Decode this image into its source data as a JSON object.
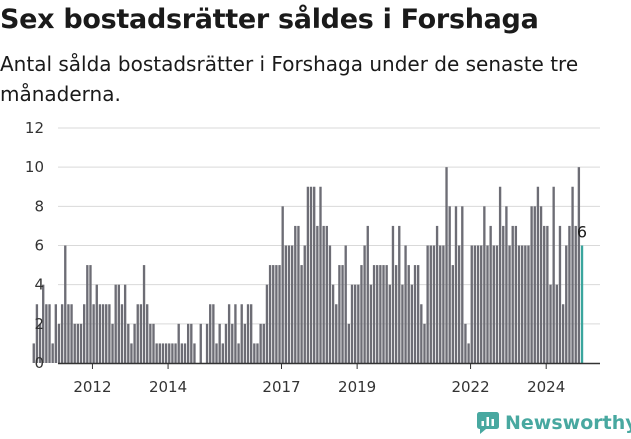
{
  "header": {
    "title": "Sex bostadsrätter såldes i Forshaga",
    "subtitle": "Antal sålda bostadsrätter i Forshaga under de senaste tre månaderna."
  },
  "brand": {
    "name": "Newsworthy",
    "icon": "bar-chart-icon"
  },
  "colors": {
    "bar": "#6d6d75",
    "highlight": "#3aa59d",
    "grid": "#d9d9d9",
    "axis": "#333333",
    "brand": "#48a8a0"
  },
  "chart_data": {
    "type": "bar",
    "title": "Sex bostadsrätter såldes i Forshaga",
    "subtitle": "Antal sålda bostadsrätter i Forshaga under de senaste tre månaderna.",
    "xlabel": "",
    "ylabel": "",
    "ylim": [
      0,
      12
    ],
    "yticks": [
      0,
      2,
      4,
      6,
      8,
      10,
      12
    ],
    "xticks": [
      2012,
      2014,
      2017,
      2019,
      2022,
      2024
    ],
    "x_start": "2011-10",
    "x_end": "2024-12",
    "grid": true,
    "legend": "none",
    "highlight_label": "6",
    "values": [
      1,
      3,
      2,
      4,
      3,
      3,
      1,
      3,
      2,
      3,
      6,
      3,
      3,
      2,
      2,
      2,
      3,
      5,
      5,
      3,
      4,
      3,
      3,
      3,
      3,
      2,
      4,
      4,
      3,
      4,
      2,
      1,
      2,
      3,
      3,
      5,
      3,
      2,
      2,
      1,
      1,
      1,
      1,
      1,
      1,
      1,
      2,
      1,
      1,
      2,
      2,
      1,
      0,
      2,
      0,
      2,
      3,
      3,
      1,
      2,
      1,
      2,
      3,
      2,
      3,
      1,
      3,
      2,
      3,
      3,
      1,
      1,
      2,
      2,
      4,
      5,
      5,
      5,
      5,
      8,
      6,
      6,
      6,
      7,
      7,
      5,
      6,
      9,
      9,
      9,
      7,
      9,
      7,
      7,
      6,
      4,
      3,
      5,
      5,
      6,
      2,
      4,
      4,
      4,
      5,
      6,
      7,
      4,
      5,
      5,
      5,
      5,
      5,
      4,
      7,
      5,
      7,
      4,
      6,
      5,
      4,
      5,
      5,
      3,
      2,
      6,
      6,
      6,
      7,
      6,
      6,
      10,
      8,
      5,
      8,
      6,
      8,
      2,
      1,
      6,
      6,
      6,
      6,
      8,
      6,
      7,
      6,
      6,
      9,
      7,
      8,
      6,
      7,
      7,
      6,
      6,
      6,
      6,
      8,
      8,
      9,
      8,
      7,
      7,
      4,
      9,
      4,
      7,
      3,
      6,
      7,
      9,
      7,
      10,
      6
    ]
  }
}
